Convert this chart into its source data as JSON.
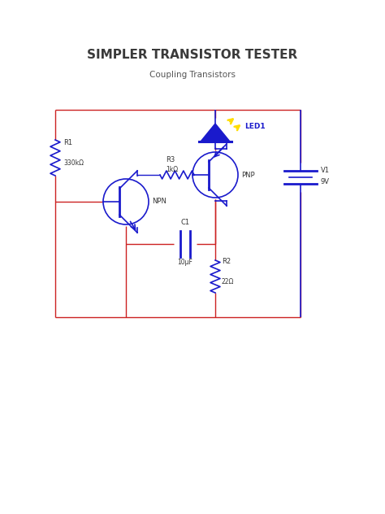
{
  "title": "SIMPLER TRANSISTOR TESTER",
  "subtitle": "Coupling Transistors",
  "title_color": "#3a3a3a",
  "subtitle_color": "#555555",
  "wire_color": "#cc2222",
  "comp_color": "#1a1acc",
  "led_body_color": "#1a1acc",
  "led_glow_color": "#ffdd00",
  "text_color": "#333333",
  "bg_color": "#ffffff",
  "r1_label": "R1",
  "r1_val": "330kΩ",
  "r2_label": "R2",
  "r2_val": "22Ω",
  "r3_label": "R3",
  "r3_val": "1kΩ",
  "c1_label": "C1",
  "c1_val": "10μF",
  "v1_label": "V1",
  "v1_val": "9V",
  "led_label": "LED1",
  "npn_label": "NPN",
  "pnp_label": "PNP"
}
